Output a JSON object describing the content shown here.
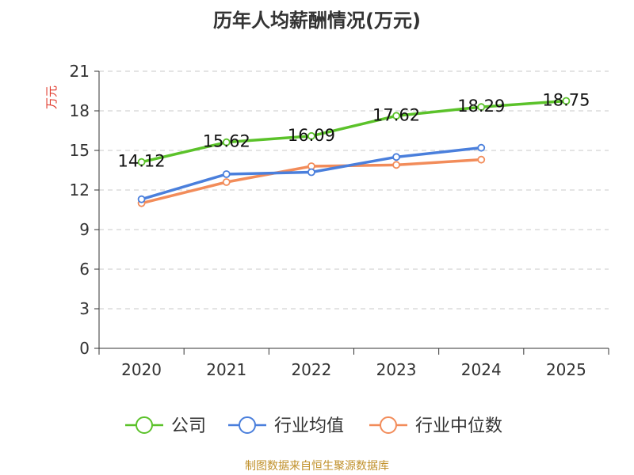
{
  "chart_data": {
    "type": "line",
    "title": "历年人均薪酬情况(万元)",
    "ylabel": "万元",
    "xlabel": "",
    "categories": [
      "2020",
      "2021",
      "2022",
      "2023",
      "2024",
      "2025"
    ],
    "ylim": [
      0,
      21
    ],
    "yticks": [
      0,
      3,
      6,
      9,
      12,
      15,
      18,
      21
    ],
    "grid": true,
    "legend_position": "bottom",
    "series": [
      {
        "name": "公司",
        "color": "#5bc22a",
        "values": [
          14.12,
          15.62,
          16.09,
          17.62,
          18.29,
          18.75
        ],
        "data_labels": [
          "14.12",
          "15.62",
          "16.09",
          "17.62",
          "18.29",
          "18.75"
        ]
      },
      {
        "name": "行业均值",
        "color": "#4a7fdc",
        "values": [
          11.3,
          13.2,
          13.35,
          14.5,
          15.2,
          null
        ]
      },
      {
        "name": "行业中位数",
        "color": "#f28c5a",
        "values": [
          11.0,
          12.6,
          13.8,
          13.9,
          14.3,
          null
        ]
      }
    ]
  },
  "source_note": "制图数据来自恒生聚源数据库"
}
